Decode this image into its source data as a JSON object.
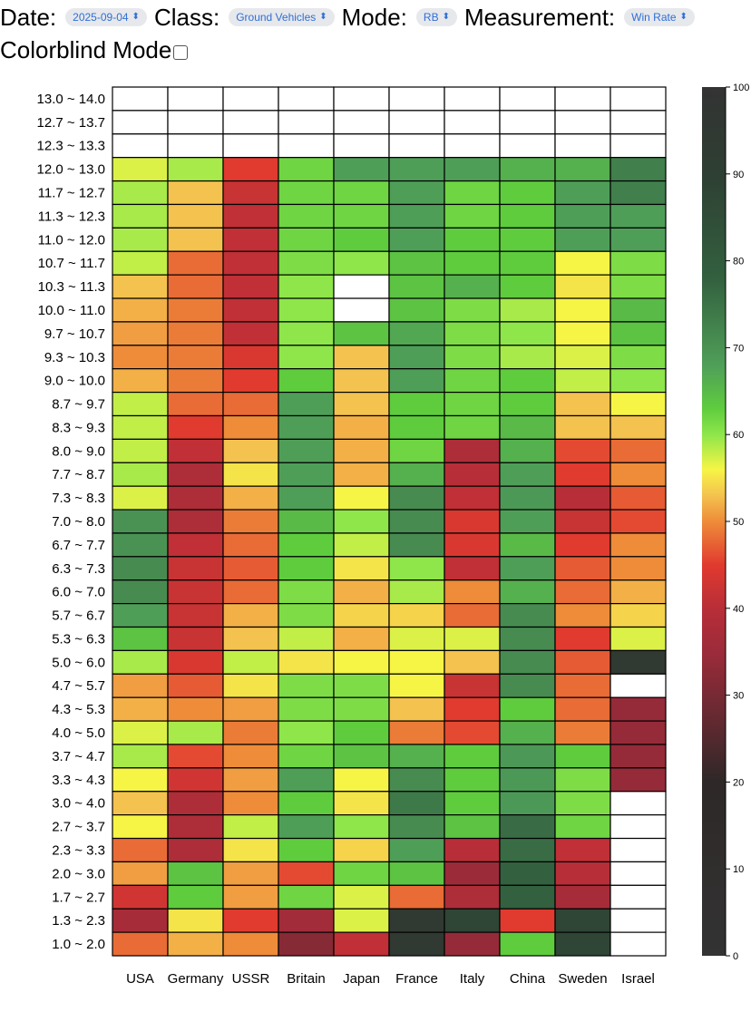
{
  "controls": {
    "date_label": "Date:",
    "date_value": "2025-09-04",
    "class_label": "Class:",
    "class_value": "Ground Vehicles",
    "mode_label": "Mode:",
    "mode_value": "RB",
    "measurement_label": "Measurement:",
    "measurement_value": "Win Rate",
    "colorblind_label": "Colorblind Mode",
    "colorblind_checked": false,
    "chevron_icon": "up-down-chevron-icon"
  },
  "chart_data": {
    "type": "heatmap",
    "title": "",
    "xlabel": "",
    "ylabel": "",
    "x": [
      "USA",
      "Germany",
      "USSR",
      "Britain",
      "Japan",
      "France",
      "Italy",
      "China",
      "Sweden",
      "Israel"
    ],
    "y": [
      "13.0 ~ 14.0",
      "12.7 ~ 13.7",
      "12.3 ~ 13.3",
      "12.0 ~ 13.0",
      "11.7 ~ 12.7",
      "11.3 ~ 12.3",
      "11.0 ~ 12.0",
      "10.7 ~ 11.7",
      "10.3 ~ 11.3",
      "10.0 ~ 11.0",
      "9.7 ~ 10.7",
      "9.3 ~ 10.3",
      "9.0 ~ 10.0",
      "8.7 ~ 9.7",
      "8.3 ~ 9.3",
      "8.0 ~ 9.0",
      "7.7 ~ 8.7",
      "7.3 ~ 8.3",
      "7.0 ~ 8.0",
      "6.7 ~ 7.7",
      "6.3 ~ 7.3",
      "6.0 ~ 7.0",
      "5.7 ~ 6.7",
      "5.3 ~ 6.3",
      "5.0 ~ 6.0",
      "4.7 ~ 5.7",
      "4.3 ~ 5.3",
      "4.0 ~ 5.0",
      "3.7 ~ 4.7",
      "3.3 ~ 4.3",
      "3.0 ~ 4.0",
      "2.7 ~ 3.7",
      "2.3 ~ 3.3",
      "2.0 ~ 3.0",
      "1.7 ~ 2.7",
      "1.3 ~ 2.3",
      "1.0 ~ 2.0"
    ],
    "values": [
      [
        null,
        null,
        null,
        null,
        null,
        null,
        null,
        null,
        null,
        null
      ],
      [
        null,
        null,
        null,
        null,
        null,
        null,
        null,
        null,
        null,
        null
      ],
      [
        null,
        null,
        null,
        null,
        null,
        null,
        null,
        null,
        null,
        null
      ],
      [
        57,
        59,
        45,
        62,
        68,
        68,
        68,
        66,
        66,
        73
      ],
      [
        59,
        53,
        42,
        62,
        62,
        68,
        62,
        63,
        68,
        73
      ],
      [
        59,
        53,
        41,
        62,
        62,
        68,
        62,
        63,
        68,
        68
      ],
      [
        59,
        53,
        41,
        62,
        63,
        68,
        63,
        63,
        68,
        68
      ],
      [
        58,
        48,
        41,
        61,
        60,
        64,
        63,
        63,
        56,
        61
      ],
      [
        53,
        48,
        41,
        60,
        null,
        64,
        66,
        63,
        55,
        61
      ],
      [
        52,
        49,
        41,
        60,
        null,
        64,
        61,
        59,
        56,
        65
      ],
      [
        51,
        49,
        41,
        60,
        64,
        67,
        61,
        60,
        56,
        64
      ],
      [
        50,
        49,
        44,
        60,
        53,
        68,
        61,
        59,
        57,
        61
      ],
      [
        52,
        49,
        45,
        63,
        53,
        68,
        62,
        63,
        58,
        60
      ],
      [
        58,
        48,
        48,
        68,
        53,
        63,
        62,
        63,
        53,
        56
      ],
      [
        58,
        45,
        50,
        68,
        52,
        63,
        62,
        65,
        53,
        53
      ],
      [
        58,
        41,
        53,
        68,
        52,
        62,
        38,
        66,
        46,
        48
      ],
      [
        59,
        38,
        55,
        68,
        52,
        66,
        40,
        68,
        45,
        50
      ],
      [
        57,
        38,
        52,
        68,
        56,
        71,
        41,
        69,
        40,
        47
      ],
      [
        70,
        38,
        49,
        65,
        60,
        71,
        44,
        68,
        42,
        46
      ],
      [
        70,
        41,
        48,
        63,
        58,
        71,
        44,
        65,
        45,
        50
      ],
      [
        71,
        42,
        47,
        63,
        55,
        60,
        41,
        68,
        47,
        50
      ],
      [
        71,
        42,
        48,
        61,
        52,
        59,
        50,
        66,
        48,
        52
      ],
      [
        68,
        42,
        52,
        61,
        54,
        54,
        48,
        71,
        50,
        54
      ],
      [
        64,
        42,
        53,
        58,
        52,
        57,
        57,
        71,
        45,
        57
      ],
      [
        59,
        44,
        58,
        55,
        56,
        56,
        53,
        71,
        47,
        95
      ],
      [
        51,
        47,
        55,
        61,
        61,
        56,
        42,
        71,
        48,
        null
      ],
      [
        52,
        50,
        51,
        61,
        61,
        53,
        45,
        63,
        48,
        34
      ],
      [
        57,
        59,
        49,
        60,
        63,
        49,
        46,
        66,
        49,
        34
      ],
      [
        59,
        46,
        50,
        62,
        64,
        66,
        63,
        69,
        63,
        34
      ],
      [
        56,
        43,
        51,
        68,
        56,
        71,
        63,
        69,
        61,
        34
      ],
      [
        53,
        38,
        50,
        63,
        55,
        74,
        63,
        69,
        61,
        null
      ],
      [
        56,
        38,
        58,
        68,
        60,
        71,
        64,
        76,
        62,
        null
      ],
      [
        48,
        38,
        55,
        63,
        54,
        68,
        40,
        76,
        41,
        null
      ],
      [
        51,
        64,
        51,
        46,
        62,
        64,
        35,
        78,
        40,
        null
      ],
      [
        43,
        63,
        51,
        62,
        57,
        48,
        38,
        78,
        37,
        null
      ],
      [
        37,
        55,
        45,
        36,
        57,
        95,
        88,
        45,
        88,
        null
      ],
      [
        48,
        52,
        50,
        32,
        41,
        95,
        34,
        63,
        88,
        null
      ]
    ],
    "colorbar": {
      "min": 0,
      "max": 100,
      "ticks": [
        0,
        10,
        20,
        30,
        40,
        50,
        60,
        70,
        80,
        90,
        100
      ],
      "stops": [
        {
          "v": 0,
          "c": "#333333"
        },
        {
          "v": 20,
          "c": "#2e2828"
        },
        {
          "v": 35,
          "c": "#9c2b3a"
        },
        {
          "v": 40,
          "c": "#b82e38"
        },
        {
          "v": 45,
          "c": "#e13a2f"
        },
        {
          "v": 50,
          "c": "#ee8c3a"
        },
        {
          "v": 53,
          "c": "#f4c24e"
        },
        {
          "v": 56,
          "c": "#f6f546"
        },
        {
          "v": 60,
          "c": "#8ee64a"
        },
        {
          "v": 63,
          "c": "#5fcc3e"
        },
        {
          "v": 68,
          "c": "#4f9e58"
        },
        {
          "v": 78,
          "c": "#33603f"
        },
        {
          "v": 90,
          "c": "#2e3f33"
        },
        {
          "v": 100,
          "c": "#333333"
        }
      ]
    },
    "colors": {
      "empty_cell": "#ffffff",
      "grid": "#000000"
    }
  }
}
